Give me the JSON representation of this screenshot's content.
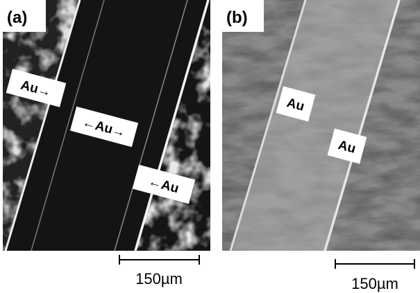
{
  "panels": [
    {
      "label": "(a)",
      "annotations": [
        "Au→",
        "←Au→",
        "←Au"
      ],
      "scale_bar": "150µm"
    },
    {
      "label": "(b)",
      "annotations": [
        "Au",
        "Au"
      ],
      "scale_bar": "150µm"
    }
  ]
}
